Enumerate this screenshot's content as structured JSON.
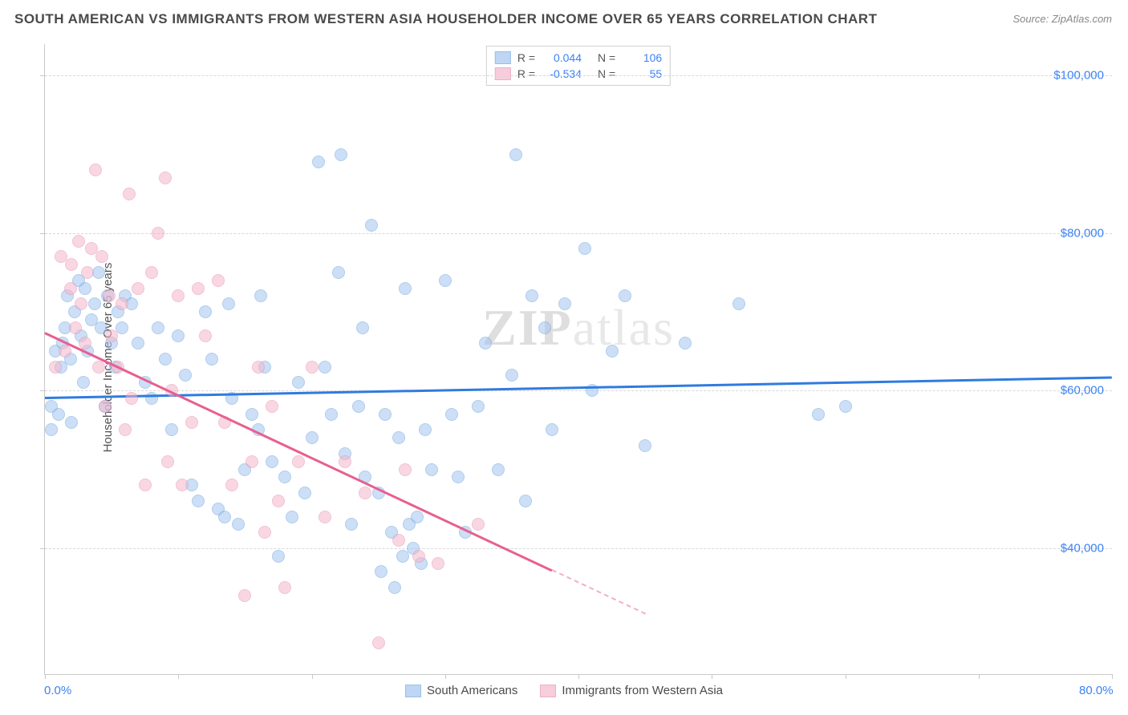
{
  "title": "SOUTH AMERICAN VS IMMIGRANTS FROM WESTERN ASIA HOUSEHOLDER INCOME OVER 65 YEARS CORRELATION CHART",
  "source": "Source: ZipAtlas.com",
  "ylabel": "Householder Income Over 65 years",
  "watermark": "ZIPatlas",
  "chart": {
    "type": "scatter",
    "xlim": [
      0,
      80
    ],
    "ylim": [
      24000,
      104000
    ],
    "x_unit": "%",
    "y_unit": "$",
    "xtick_labels": {
      "0": "0.0%",
      "80": "80.0%"
    },
    "xtick_positions": [
      0,
      10,
      20,
      30,
      40,
      50,
      60,
      70,
      80
    ],
    "ytick_labels": {
      "40000": "$40,000",
      "60000": "$60,000",
      "80000": "$80,000",
      "100000": "$100,000"
    },
    "ytick_positions": [
      40000,
      60000,
      80000,
      100000
    ],
    "grid_color": "#d8d8d8",
    "axis_color": "#c8c8c8",
    "background_color": "#ffffff"
  },
  "series": [
    {
      "key": "south_americans",
      "label": "South Americans",
      "fill": "#a3c6f0",
      "stroke": "#6ea5e0",
      "fill_opacity": 0.55,
      "marker_radius": 8,
      "r_value": "0.044",
      "n_value": "106",
      "trend": {
        "color": "#2f7be0",
        "y_at_x0": 59200,
        "y_at_x80": 61800,
        "width": 2.5,
        "x_end": 80
      },
      "points": [
        [
          0.5,
          55000
        ],
        [
          0.5,
          58000
        ],
        [
          0.8,
          65000
        ],
        [
          1.0,
          57000
        ],
        [
          1.2,
          63000
        ],
        [
          1.3,
          66000
        ],
        [
          1.5,
          68000
        ],
        [
          1.7,
          72000
        ],
        [
          1.9,
          64000
        ],
        [
          2.0,
          56000
        ],
        [
          2.2,
          70000
        ],
        [
          2.5,
          74000
        ],
        [
          2.7,
          67000
        ],
        [
          2.9,
          61000
        ],
        [
          3.0,
          73000
        ],
        [
          3.2,
          65000
        ],
        [
          3.5,
          69000
        ],
        [
          3.7,
          71000
        ],
        [
          4.0,
          75000
        ],
        [
          4.2,
          68000
        ],
        [
          4.5,
          58000
        ],
        [
          4.7,
          72000
        ],
        [
          5.0,
          66000
        ],
        [
          5.3,
          63000
        ],
        [
          5.5,
          70000
        ],
        [
          5.8,
          68000
        ],
        [
          6.0,
          72000
        ],
        [
          6.5,
          71000
        ],
        [
          7.0,
          66000
        ],
        [
          7.5,
          61000
        ],
        [
          8.0,
          59000
        ],
        [
          8.5,
          68000
        ],
        [
          9.0,
          64000
        ],
        [
          9.5,
          55000
        ],
        [
          10.0,
          67000
        ],
        [
          10.5,
          62000
        ],
        [
          11.0,
          48000
        ],
        [
          11.5,
          46000
        ],
        [
          12.0,
          70000
        ],
        [
          12.5,
          64000
        ],
        [
          13.0,
          45000
        ],
        [
          13.5,
          44000
        ],
        [
          13.8,
          71000
        ],
        [
          14.0,
          59000
        ],
        [
          14.5,
          43000
        ],
        [
          15.0,
          50000
        ],
        [
          15.5,
          57000
        ],
        [
          16.0,
          55000
        ],
        [
          16.2,
          72000
        ],
        [
          16.5,
          63000
        ],
        [
          17.0,
          51000
        ],
        [
          17.5,
          39000
        ],
        [
          18.0,
          49000
        ],
        [
          18.5,
          44000
        ],
        [
          19.0,
          61000
        ],
        [
          19.5,
          47000
        ],
        [
          20.0,
          54000
        ],
        [
          20.5,
          89000
        ],
        [
          21.0,
          63000
        ],
        [
          21.5,
          57000
        ],
        [
          22.0,
          75000
        ],
        [
          22.2,
          90000
        ],
        [
          22.5,
          52000
        ],
        [
          23.0,
          43000
        ],
        [
          23.5,
          58000
        ],
        [
          23.8,
          68000
        ],
        [
          24.0,
          49000
        ],
        [
          24.5,
          81000
        ],
        [
          25.0,
          47000
        ],
        [
          25.2,
          37000
        ],
        [
          25.5,
          57000
        ],
        [
          26.0,
          42000
        ],
        [
          26.2,
          35000
        ],
        [
          26.5,
          54000
        ],
        [
          26.8,
          39000
        ],
        [
          27.0,
          73000
        ],
        [
          27.3,
          43000
        ],
        [
          27.6,
          40000
        ],
        [
          27.9,
          44000
        ],
        [
          28.2,
          38000
        ],
        [
          28.5,
          55000
        ],
        [
          29.0,
          50000
        ],
        [
          30.0,
          74000
        ],
        [
          30.5,
          57000
        ],
        [
          31.0,
          49000
        ],
        [
          31.5,
          42000
        ],
        [
          32.5,
          58000
        ],
        [
          33.0,
          66000
        ],
        [
          34.0,
          50000
        ],
        [
          35.0,
          62000
        ],
        [
          35.3,
          90000
        ],
        [
          36.0,
          46000
        ],
        [
          36.5,
          72000
        ],
        [
          37.5,
          68000
        ],
        [
          38.0,
          55000
        ],
        [
          39.0,
          71000
        ],
        [
          40.5,
          78000
        ],
        [
          41.0,
          60000
        ],
        [
          42.5,
          65000
        ],
        [
          43.5,
          72000
        ],
        [
          45.0,
          53000
        ],
        [
          48.0,
          66000
        ],
        [
          52.0,
          71000
        ],
        [
          58.0,
          57000
        ],
        [
          60.0,
          58000
        ]
      ]
    },
    {
      "key": "western_asia",
      "label": "Immigrants from Western Asia",
      "fill": "#f5b8cc",
      "stroke": "#e88fb0",
      "fill_opacity": 0.55,
      "marker_radius": 8,
      "r_value": "-0.534",
      "n_value": "55",
      "trend": {
        "color": "#e85f8f",
        "y_at_x0": 67500,
        "y_at_x80": 4000,
        "width": 2.5,
        "x_end": 38
      },
      "points": [
        [
          0.8,
          63000
        ],
        [
          1.2,
          77000
        ],
        [
          1.5,
          65000
        ],
        [
          1.9,
          73000
        ],
        [
          2.0,
          76000
        ],
        [
          2.3,
          68000
        ],
        [
          2.5,
          79000
        ],
        [
          2.7,
          71000
        ],
        [
          3.0,
          66000
        ],
        [
          3.2,
          75000
        ],
        [
          3.5,
          78000
        ],
        [
          3.8,
          88000
        ],
        [
          4.0,
          63000
        ],
        [
          4.3,
          77000
        ],
        [
          4.5,
          58000
        ],
        [
          4.8,
          72000
        ],
        [
          5.0,
          67000
        ],
        [
          5.5,
          63000
        ],
        [
          5.8,
          71000
        ],
        [
          6.0,
          55000
        ],
        [
          6.3,
          85000
        ],
        [
          6.5,
          59000
        ],
        [
          7.0,
          73000
        ],
        [
          7.5,
          48000
        ],
        [
          8.0,
          75000
        ],
        [
          8.5,
          80000
        ],
        [
          9.0,
          87000
        ],
        [
          9.2,
          51000
        ],
        [
          9.5,
          60000
        ],
        [
          10.0,
          72000
        ],
        [
          10.3,
          48000
        ],
        [
          11.0,
          56000
        ],
        [
          11.5,
          73000
        ],
        [
          12.0,
          67000
        ],
        [
          13.0,
          74000
        ],
        [
          13.5,
          56000
        ],
        [
          14.0,
          48000
        ],
        [
          15.0,
          34000
        ],
        [
          15.5,
          51000
        ],
        [
          16.0,
          63000
        ],
        [
          16.5,
          42000
        ],
        [
          17.0,
          58000
        ],
        [
          17.5,
          46000
        ],
        [
          18.0,
          35000
        ],
        [
          19.0,
          51000
        ],
        [
          20.0,
          63000
        ],
        [
          21.0,
          44000
        ],
        [
          22.5,
          51000
        ],
        [
          24.0,
          47000
        ],
        [
          25.0,
          28000
        ],
        [
          26.5,
          41000
        ],
        [
          27.0,
          50000
        ],
        [
          28.0,
          39000
        ],
        [
          29.5,
          38000
        ],
        [
          32.5,
          43000
        ]
      ]
    }
  ],
  "stats_box": {
    "r_label": "R =",
    "n_label": "N ="
  },
  "bottom_legend_labels": [
    "South Americans",
    "Immigrants from Western Asia"
  ]
}
